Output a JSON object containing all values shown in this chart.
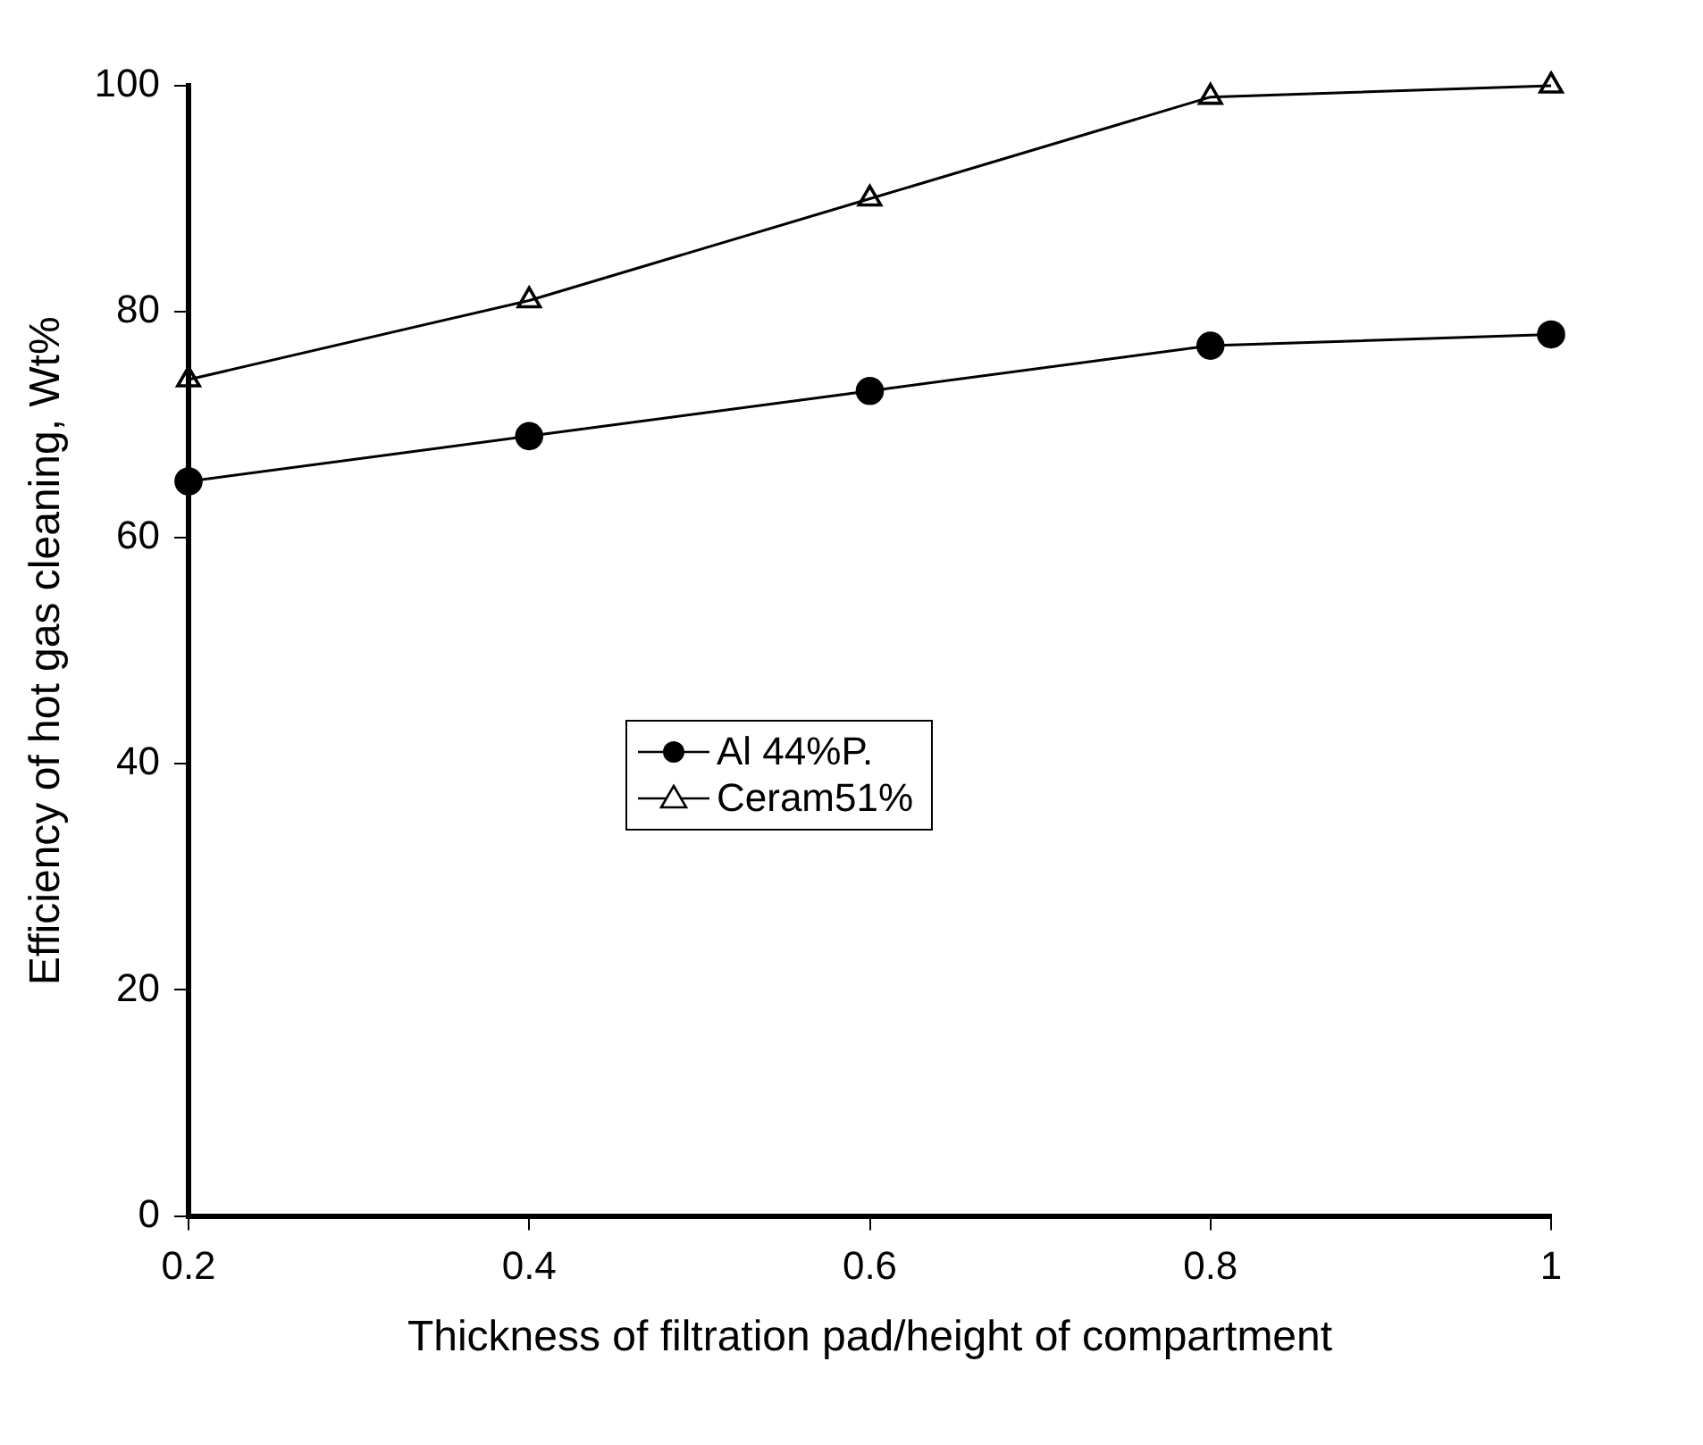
{
  "chart_data": {
    "type": "line",
    "xlabel": "Thickness of filtration pad/height of compartment",
    "ylabel": "Efficiency of hot gas cleaning, Wt%",
    "x": [
      0.2,
      0.4,
      0.6,
      0.8,
      1
    ],
    "series": [
      {
        "name": "Al 44%P.",
        "color": "#000000",
        "marker": "circle",
        "values": [
          65,
          69,
          73,
          77,
          78
        ]
      },
      {
        "name": "Ceram51%",
        "color": "#000000",
        "marker": "triangle",
        "values": [
          74,
          81,
          90,
          99,
          100
        ]
      }
    ],
    "xlim": [
      0.2,
      1
    ],
    "xticks": [
      0.2,
      0.4,
      0.6,
      0.8,
      1
    ],
    "ylim": [
      0,
      100
    ],
    "yticks": [
      0,
      20,
      40,
      60,
      80,
      100
    ],
    "grid": false,
    "legend": "center",
    "line_style": "solid"
  }
}
